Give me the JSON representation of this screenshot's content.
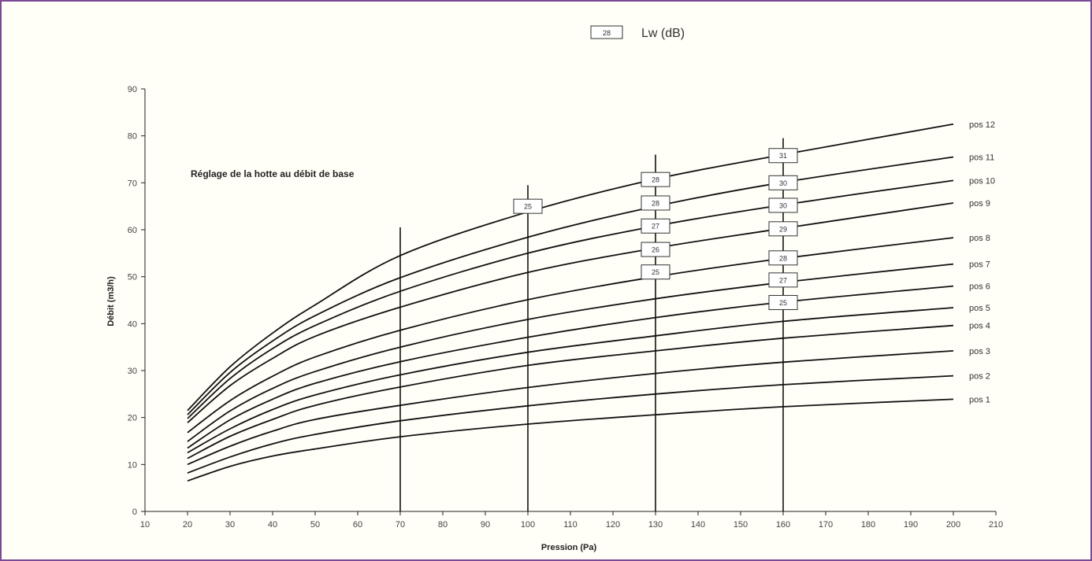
{
  "colors": {
    "frame": "#7b4a96",
    "line": "#111111",
    "background": "#fffef7"
  },
  "legend": {
    "sample_box": "28",
    "label": "Lw (dB)"
  },
  "chart_data": {
    "type": "line",
    "xlabel": "Pression (Pa)",
    "ylabel": "Débit (m3/h)",
    "xlim": [
      10,
      210
    ],
    "ylim": [
      0,
      90
    ],
    "x_ticks": [
      "10",
      "20",
      "30",
      "40",
      "50",
      "60",
      "70",
      "80",
      "90",
      "100",
      "110",
      "120",
      "130",
      "140",
      "150",
      "160",
      "170",
      "180",
      "190",
      "200",
      "210"
    ],
    "y_ticks": [
      "0",
      "10",
      "20",
      "30",
      "40",
      "50",
      "60",
      "70",
      "80",
      "90"
    ],
    "annotation": "Réglage de la hotte au débit de base",
    "x": [
      20,
      30,
      40,
      50,
      70,
      100,
      130,
      160,
      200
    ],
    "series": [
      {
        "name": "pos 1",
        "values": [
          6.5,
          9.6,
          11.8,
          13.3,
          15.9,
          18.6,
          20.6,
          22.3,
          23.9
        ]
      },
      {
        "name": "pos 2",
        "values": [
          8.2,
          11.6,
          14.4,
          16.4,
          19.3,
          22.5,
          25.0,
          27.0,
          28.9
        ]
      },
      {
        "name": "pos 3",
        "values": [
          10.0,
          13.9,
          17.1,
          19.6,
          22.6,
          26.4,
          29.4,
          31.8,
          34.2
        ]
      },
      {
        "name": "pos 4",
        "values": [
          11.3,
          16.0,
          19.6,
          22.6,
          26.5,
          31.1,
          34.2,
          36.9,
          39.6
        ]
      },
      {
        "name": "pos 5",
        "values": [
          12.5,
          17.6,
          21.7,
          24.8,
          29.1,
          33.9,
          37.4,
          40.5,
          43.4
        ]
      },
      {
        "name": "pos 6",
        "values": [
          13.5,
          19.5,
          23.9,
          27.3,
          31.9,
          37.1,
          41.3,
          44.6,
          48.0
        ]
      },
      {
        "name": "pos 7",
        "values": [
          14.9,
          21.4,
          26.2,
          29.8,
          35.0,
          40.9,
          45.3,
          48.8,
          52.7
        ]
      },
      {
        "name": "pos 8",
        "values": [
          16.8,
          23.6,
          28.8,
          32.9,
          38.6,
          45.1,
          50.0,
          53.9,
          58.3
        ]
      },
      {
        "name": "pos 9",
        "values": [
          18.9,
          26.8,
          32.6,
          37.3,
          43.5,
          50.9,
          56.1,
          60.3,
          65.7
        ]
      },
      {
        "name": "pos 10",
        "values": [
          19.8,
          28.3,
          34.7,
          39.6,
          46.9,
          55.0,
          60.8,
          65.3,
          70.5
        ]
      },
      {
        "name": "pos 11",
        "values": [
          20.6,
          29.6,
          36.3,
          41.7,
          49.8,
          58.4,
          65.0,
          70.1,
          75.5
        ]
      },
      {
        "name": "pos 12",
        "values": [
          21.5,
          30.8,
          38.0,
          44.0,
          54.5,
          63.8,
          70.8,
          76.0,
          82.5
        ]
      }
    ],
    "vertical_markers": [
      {
        "x": 70,
        "y_top": 60.5
      },
      {
        "x": 100,
        "y_top": 69.5
      },
      {
        "x": 130,
        "y_top": 76
      },
      {
        "x": 160,
        "y_top": 79.5
      }
    ],
    "noise_labels": [
      {
        "x": 100,
        "y": 65.0,
        "text": "25"
      },
      {
        "x": 130,
        "y": 70.7,
        "text": "28"
      },
      {
        "x": 130,
        "y": 65.7,
        "text": "28"
      },
      {
        "x": 130,
        "y": 60.8,
        "text": "27"
      },
      {
        "x": 130,
        "y": 55.8,
        "text": "26"
      },
      {
        "x": 130,
        "y": 51.0,
        "text": "25"
      },
      {
        "x": 160,
        "y": 75.8,
        "text": "31"
      },
      {
        "x": 160,
        "y": 70.0,
        "text": "30"
      },
      {
        "x": 160,
        "y": 65.2,
        "text": "30"
      },
      {
        "x": 160,
        "y": 60.2,
        "text": "29"
      },
      {
        "x": 160,
        "y": 54.0,
        "text": "28"
      },
      {
        "x": 160,
        "y": 49.3,
        "text": "27"
      },
      {
        "x": 160,
        "y": 44.5,
        "text": "25"
      }
    ]
  }
}
